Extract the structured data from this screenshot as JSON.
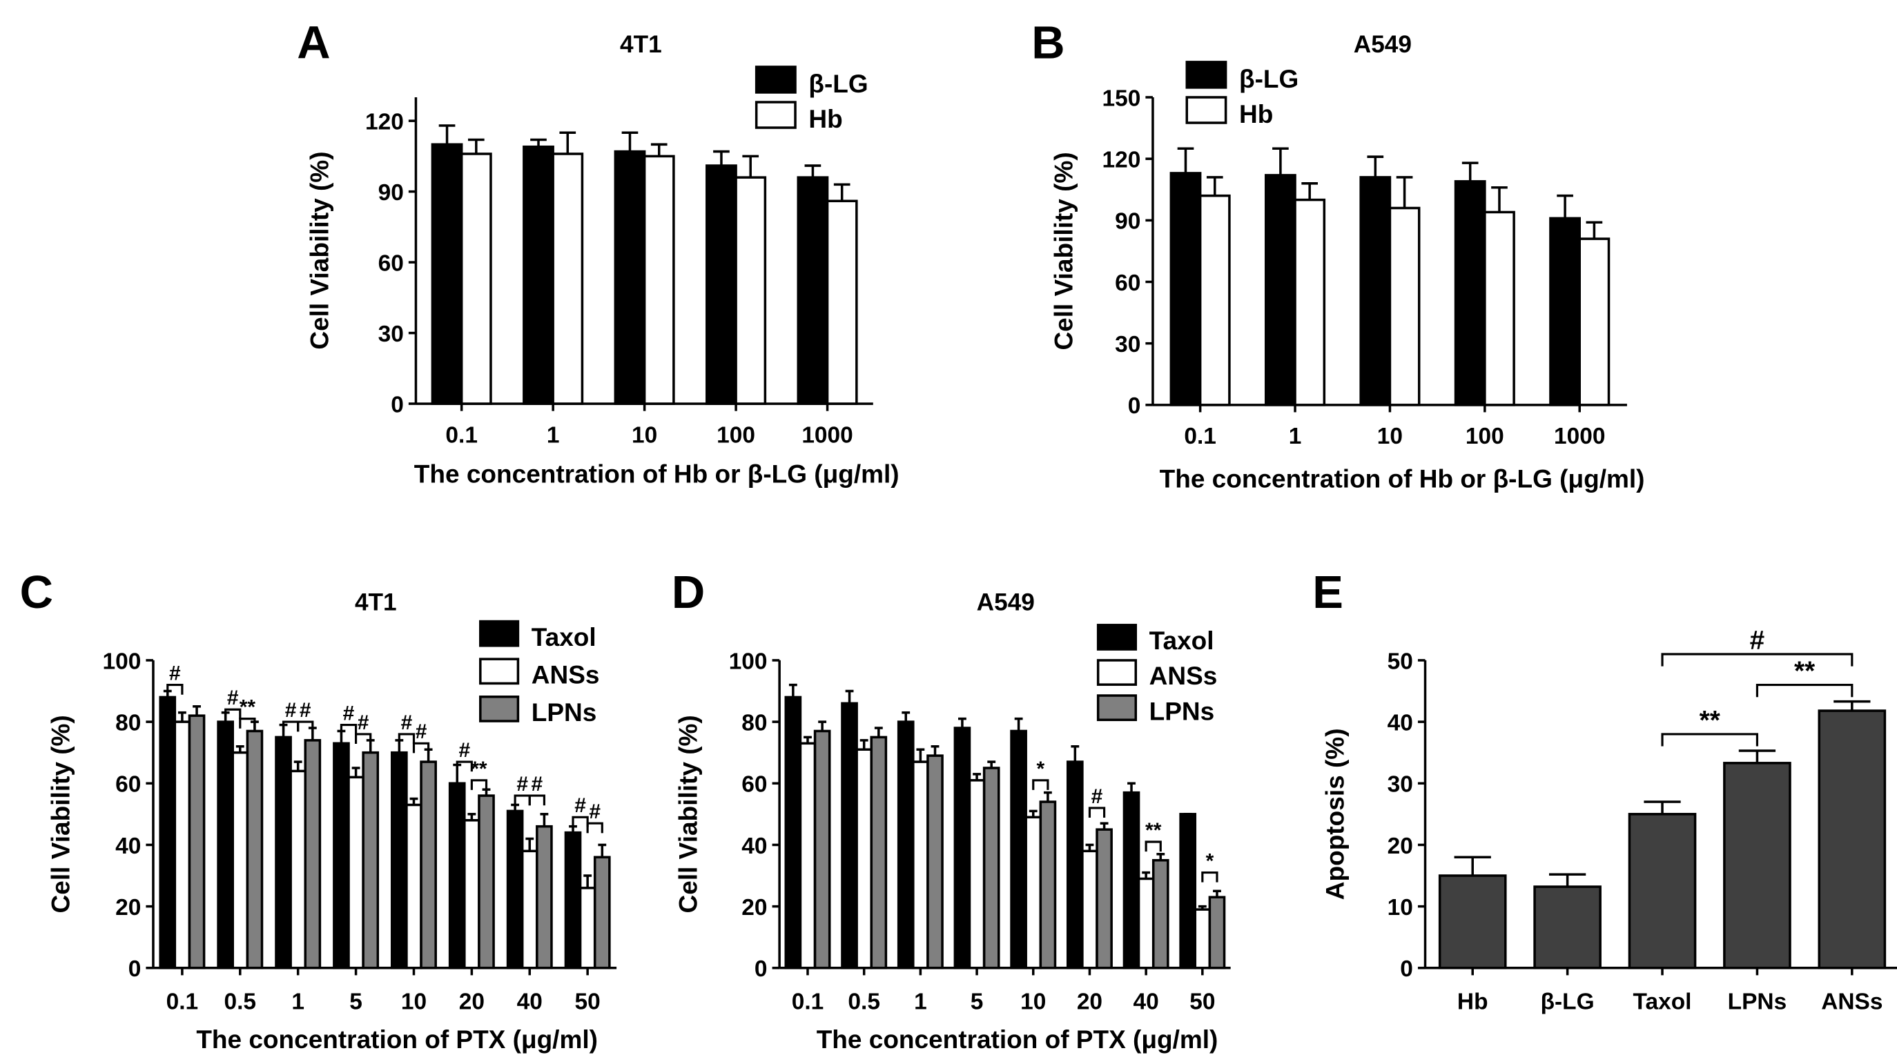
{
  "chart_data": [
    {
      "panel": "A",
      "type": "bar",
      "title": "4T1",
      "xlabel": "The concentration of Hb or β-LG (μg/ml)",
      "ylabel": "Cell Viability (%)",
      "ylim": [
        0,
        130
      ],
      "yticks": [
        "0",
        "30",
        "60",
        "90",
        "120"
      ],
      "categories": [
        "0.1",
        "1",
        "10",
        "100",
        "1000"
      ],
      "legend_position": "top-right",
      "series": [
        {
          "name": "β-LG",
          "color": "#000000",
          "values": [
            110,
            109,
            107,
            101,
            96
          ],
          "errors": [
            8,
            3,
            8,
            6,
            5
          ]
        },
        {
          "name": "Hb",
          "color": "#ffffff",
          "values": [
            106,
            106,
            105,
            96,
            86
          ],
          "errors": [
            6,
            9,
            5,
            9,
            7
          ]
        }
      ],
      "annotations": []
    },
    {
      "panel": "B",
      "type": "bar",
      "title": "A549",
      "xlabel": "The concentration of Hb or β-LG (μg/ml)",
      "ylabel": "Cell Viability (%)",
      "ylim": [
        0,
        150
      ],
      "yticks": [
        "0",
        "30",
        "60",
        "90",
        "120",
        "150"
      ],
      "categories": [
        "0.1",
        "1",
        "10",
        "100",
        "1000"
      ],
      "legend_position": "top-left",
      "series": [
        {
          "name": "β-LG",
          "color": "#000000",
          "values": [
            113,
            112,
            111,
            109,
            91
          ],
          "errors": [
            12,
            13,
            10,
            9,
            11
          ]
        },
        {
          "name": "Hb",
          "color": "#ffffff",
          "values": [
            102,
            100,
            96,
            94,
            81
          ],
          "errors": [
            9,
            8,
            15,
            12,
            8
          ]
        }
      ],
      "annotations": []
    },
    {
      "panel": "C",
      "type": "bar",
      "title": "4T1",
      "xlabel": "The concentration of PTX (μg/ml)",
      "ylabel": "Cell Viability (%)",
      "ylim": [
        0,
        100
      ],
      "yticks": [
        "0",
        "20",
        "40",
        "60",
        "80",
        "100"
      ],
      "categories": [
        "0.1",
        "0.5",
        "1",
        "5",
        "10",
        "20",
        "40",
        "50"
      ],
      "legend_position": "top-right",
      "series": [
        {
          "name": "Taxol",
          "color": "#000000",
          "values": [
            88,
            80,
            75,
            73,
            70,
            60,
            51,
            44
          ],
          "errors": [
            2,
            3,
            4,
            4,
            4,
            6,
            2,
            2
          ]
        },
        {
          "name": "ANSs",
          "color": "#ffffff",
          "values": [
            80,
            70,
            64,
            62,
            53,
            48,
            38,
            26
          ],
          "errors": [
            3,
            2,
            3,
            3,
            2,
            2,
            4,
            4
          ]
        },
        {
          "name": "LPNs",
          "color": "#808080",
          "values": [
            82,
            77,
            74,
            70,
            67,
            56,
            46,
            36
          ],
          "errors": [
            3,
            3,
            4,
            4,
            4,
            2,
            4,
            4
          ]
        }
      ],
      "annotations": [
        {
          "category": 0,
          "from": "Taxol",
          "to": "ANSs",
          "level": 92,
          "label": "#"
        },
        {
          "category": 1,
          "from": "Taxol",
          "to": "ANSs",
          "level": 84,
          "label": "#"
        },
        {
          "category": 1,
          "from": "ANSs",
          "to": "LPNs",
          "level": 81,
          "label": "**"
        },
        {
          "category": 2,
          "from": "Taxol",
          "to": "ANSs",
          "level": 80,
          "label": "#"
        },
        {
          "category": 2,
          "from": "ANSs",
          "to": "LPNs",
          "level": 80,
          "label": "#"
        },
        {
          "category": 3,
          "from": "Taxol",
          "to": "ANSs",
          "level": 79,
          "label": "#"
        },
        {
          "category": 3,
          "from": "ANSs",
          "to": "LPNs",
          "level": 76,
          "label": "#"
        },
        {
          "category": 4,
          "from": "Taxol",
          "to": "ANSs",
          "level": 76,
          "label": "#"
        },
        {
          "category": 4,
          "from": "ANSs",
          "to": "LPNs",
          "level": 73,
          "label": "#"
        },
        {
          "category": 5,
          "from": "Taxol",
          "to": "ANSs",
          "level": 67,
          "label": "#"
        },
        {
          "category": 5,
          "from": "ANSs",
          "to": "LPNs",
          "level": 61,
          "label": "**"
        },
        {
          "category": 6,
          "from": "Taxol",
          "to": "ANSs",
          "level": 56,
          "label": "#"
        },
        {
          "category": 6,
          "from": "ANSs",
          "to": "LPNs",
          "level": 56,
          "label": "#"
        },
        {
          "category": 7,
          "from": "Taxol",
          "to": "ANSs",
          "level": 49,
          "label": "#"
        },
        {
          "category": 7,
          "from": "ANSs",
          "to": "LPNs",
          "level": 47,
          "label": "#"
        }
      ]
    },
    {
      "panel": "D",
      "type": "bar",
      "title": "A549",
      "xlabel": "The concentration of PTX (μg/ml)",
      "ylabel": "Cell Viability (%)",
      "ylim": [
        0,
        100
      ],
      "yticks": [
        "0",
        "20",
        "40",
        "60",
        "80",
        "100"
      ],
      "categories": [
        "0.1",
        "0.5",
        "1",
        "5",
        "10",
        "20",
        "40",
        "50"
      ],
      "legend_position": "top-right",
      "series": [
        {
          "name": "Taxol",
          "color": "#000000",
          "values": [
            88,
            86,
            80,
            78,
            77,
            67,
            57,
            50
          ],
          "errors": [
            4,
            4,
            3,
            3,
            4,
            5,
            3,
            0
          ]
        },
        {
          "name": "ANSs",
          "color": "#ffffff",
          "values": [
            73,
            71,
            67,
            61,
            49,
            38,
            29,
            19
          ],
          "errors": [
            2,
            3,
            4,
            2,
            2,
            2,
            2,
            1
          ]
        },
        {
          "name": "LPNs",
          "color": "#808080",
          "values": [
            77,
            75,
            69,
            65,
            54,
            45,
            35,
            23
          ],
          "errors": [
            3,
            3,
            3,
            2,
            3,
            2,
            2,
            2
          ]
        }
      ],
      "annotations": [
        {
          "category": 4,
          "from": "ANSs",
          "to": "LPNs",
          "level": 61,
          "label": "*"
        },
        {
          "category": 5,
          "from": "ANSs",
          "to": "LPNs",
          "level": 52,
          "label": "#"
        },
        {
          "category": 6,
          "from": "ANSs",
          "to": "LPNs",
          "level": 41,
          "label": "**"
        },
        {
          "category": 7,
          "from": "ANSs",
          "to": "LPNs",
          "level": 31,
          "label": "*"
        }
      ]
    },
    {
      "panel": "E",
      "type": "bar",
      "title": "",
      "xlabel": "",
      "ylabel": "Apoptosis (%)",
      "ylim": [
        0,
        50
      ],
      "yticks": [
        "0",
        "10",
        "20",
        "30",
        "40",
        "50"
      ],
      "categories": [
        "Hb",
        "β-LG",
        "Taxol",
        "LPNs",
        "ANSs"
      ],
      "legend_position": "none",
      "series": [
        {
          "name": "",
          "color": "#404040",
          "values": [
            15,
            13.2,
            25,
            33.3,
            41.8
          ],
          "errors": [
            3,
            2,
            2,
            2,
            1.5
          ]
        }
      ],
      "annotations": [
        {
          "from": 2,
          "to": 3,
          "level": 38,
          "label": "**"
        },
        {
          "from": 3,
          "to": 4,
          "level": 46,
          "label": "**"
        },
        {
          "from": 2,
          "to": 4,
          "level": 51,
          "label": "#"
        }
      ]
    }
  ]
}
